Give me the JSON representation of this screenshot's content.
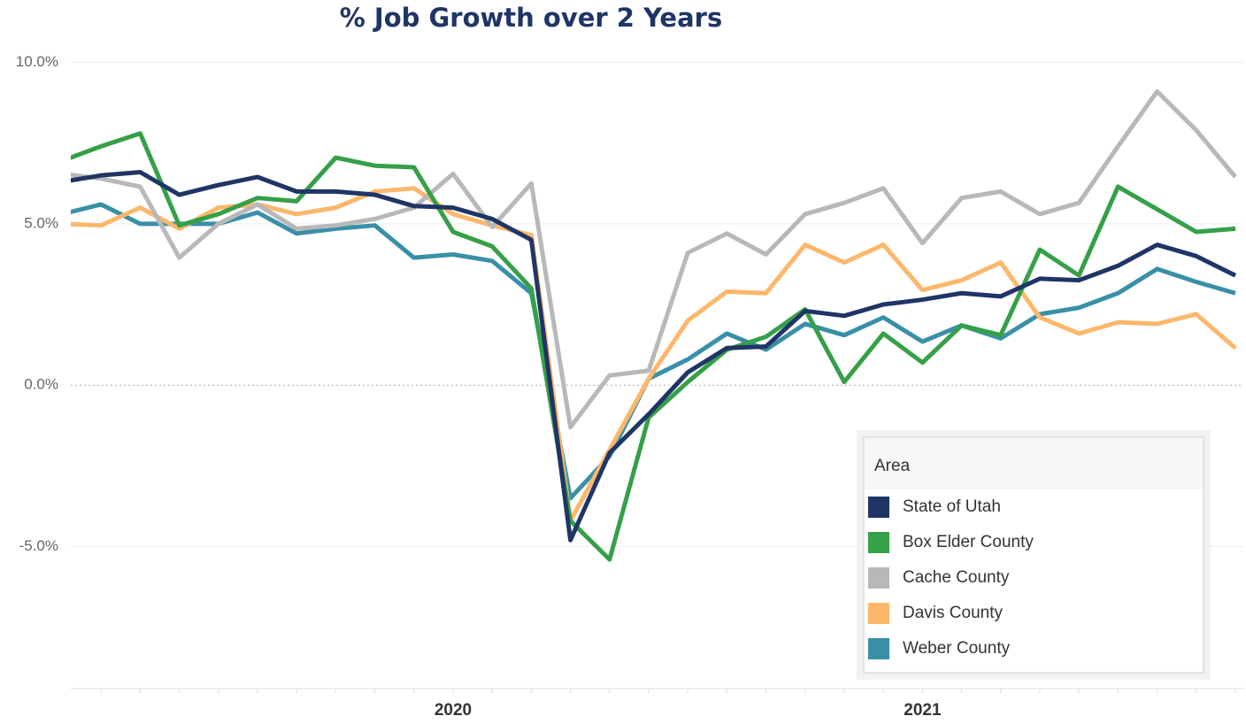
{
  "chart_data": {
    "type": "line",
    "title": "% Job Growth over 2 Years",
    "categories": [
      null,
      null,
      null,
      null,
      null,
      null,
      null,
      null,
      null,
      null,
      "2020",
      null,
      null,
      null,
      null,
      null,
      null,
      null,
      null,
      null,
      null,
      null,
      "2021",
      null,
      null,
      null,
      null,
      null,
      null,
      null,
      null
    ],
    "ylim": [
      -9.4,
      10.7
    ],
    "yticks": [
      {
        "value": -5,
        "label": "-5.0%"
      },
      {
        "value": 0,
        "label": "0.0%"
      },
      {
        "value": 5,
        "label": "5.0%"
      },
      {
        "value": 10,
        "label": "10.0%"
      }
    ],
    "grid": true,
    "legend": {
      "title": "Area",
      "position": "bottom-right"
    },
    "series": [
      {
        "name": "State of Utah",
        "color": "#1f3566",
        "values": [
          6.3,
          6.5,
          6.6,
          5.9,
          6.2,
          6.45,
          6.0,
          6.0,
          5.9,
          5.55,
          5.5,
          5.15,
          4.5,
          -4.8,
          -2.1,
          -0.9,
          0.4,
          1.15,
          1.2,
          2.3,
          2.15,
          2.5,
          2.65,
          2.85,
          2.75,
          3.3,
          3.25,
          3.7,
          4.35,
          4.0,
          3.4
        ]
      },
      {
        "name": "Box Elder County",
        "color": "#35a047",
        "values": [
          6.95,
          7.4,
          7.8,
          4.95,
          5.3,
          5.8,
          5.7,
          7.05,
          6.8,
          6.75,
          4.75,
          4.3,
          3.0,
          -4.2,
          -5.4,
          -1.0,
          0.1,
          1.1,
          1.5,
          2.35,
          0.1,
          1.6,
          0.7,
          1.85,
          1.55,
          4.2,
          3.4,
          6.15,
          5.45,
          4.75,
          4.85
        ]
      },
      {
        "name": "Cache County",
        "color": "#b8b8b8",
        "values": [
          6.55,
          6.4,
          6.15,
          3.95,
          5.0,
          5.6,
          4.85,
          4.95,
          5.15,
          5.5,
          6.55,
          4.9,
          6.25,
          -1.3,
          0.3,
          0.45,
          4.1,
          4.7,
          4.05,
          5.3,
          5.65,
          6.1,
          4.4,
          5.8,
          6.0,
          5.3,
          5.65,
          7.4,
          9.1,
          7.9,
          6.45
        ]
      },
      {
        "name": "Davis County",
        "color": "#fdb76b",
        "values": [
          5.0,
          4.95,
          5.5,
          4.85,
          5.5,
          5.6,
          5.3,
          5.5,
          6.0,
          6.1,
          5.3,
          4.95,
          4.65,
          -4.2,
          -2.0,
          0.2,
          2.0,
          2.9,
          2.85,
          4.35,
          3.8,
          4.35,
          2.95,
          3.25,
          3.8,
          2.1,
          1.6,
          1.95,
          1.9,
          2.2,
          1.15
        ]
      },
      {
        "name": "Weber County",
        "color": "#3a8fa8",
        "values": [
          5.3,
          5.6,
          5.0,
          5.0,
          5.0,
          5.35,
          4.7,
          4.85,
          4.95,
          3.95,
          4.05,
          3.85,
          2.85,
          -3.5,
          -2.2,
          0.2,
          0.8,
          1.6,
          1.1,
          1.9,
          1.55,
          2.1,
          1.35,
          1.85,
          1.45,
          2.2,
          2.4,
          2.85,
          3.6,
          3.2,
          2.85
        ]
      }
    ]
  }
}
